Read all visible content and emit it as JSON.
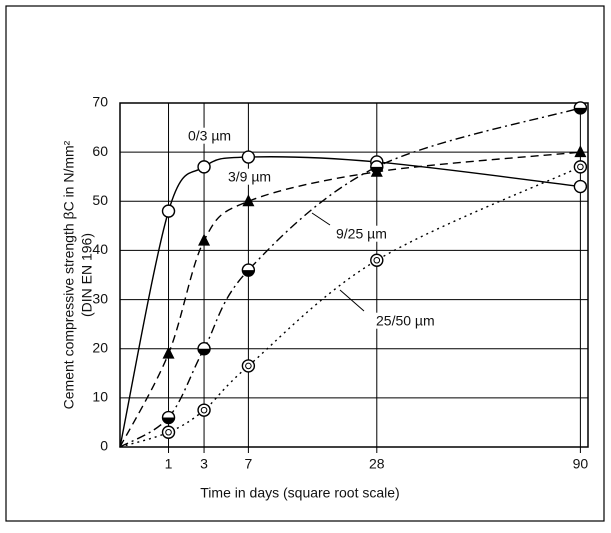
{
  "chart_data": {
    "type": "line",
    "x_label": "Time in days (square root scale)",
    "y_label": "Cement compressive strength βC in N/mm²",
    "y_label_sub": "(DIN EN 196)",
    "x": [
      0,
      1,
      3,
      7,
      28,
      90
    ],
    "xscale": "sqrt",
    "xlim": [
      0,
      93
    ],
    "xticks": [
      1,
      3,
      7,
      28,
      90
    ],
    "ylim": [
      0,
      70
    ],
    "yticks": [
      0,
      10,
      20,
      30,
      40,
      50,
      60,
      70
    ],
    "grid": true,
    "series": [
      {
        "name": "0/3 µm",
        "color": "#000000",
        "linestyle": "solid",
        "marker": "circle-open",
        "values": [
          0,
          48,
          57,
          59,
          58,
          53
        ]
      },
      {
        "name": "3/9 µm",
        "color": "#000000",
        "linestyle": "dashed",
        "marker": "triangle",
        "values": [
          0,
          19,
          42,
          50,
          56,
          60
        ]
      },
      {
        "name": "9/25 µm",
        "color": "#000000",
        "linestyle": "dashdot",
        "marker": "circle-half",
        "values": [
          0,
          6,
          20,
          36,
          57,
          69
        ]
      },
      {
        "name": "25/50 µm",
        "color": "#000000",
        "linestyle": "dotted",
        "marker": "circle-double",
        "values": [
          0,
          3,
          7.5,
          16.5,
          38,
          57
        ]
      }
    ]
  }
}
